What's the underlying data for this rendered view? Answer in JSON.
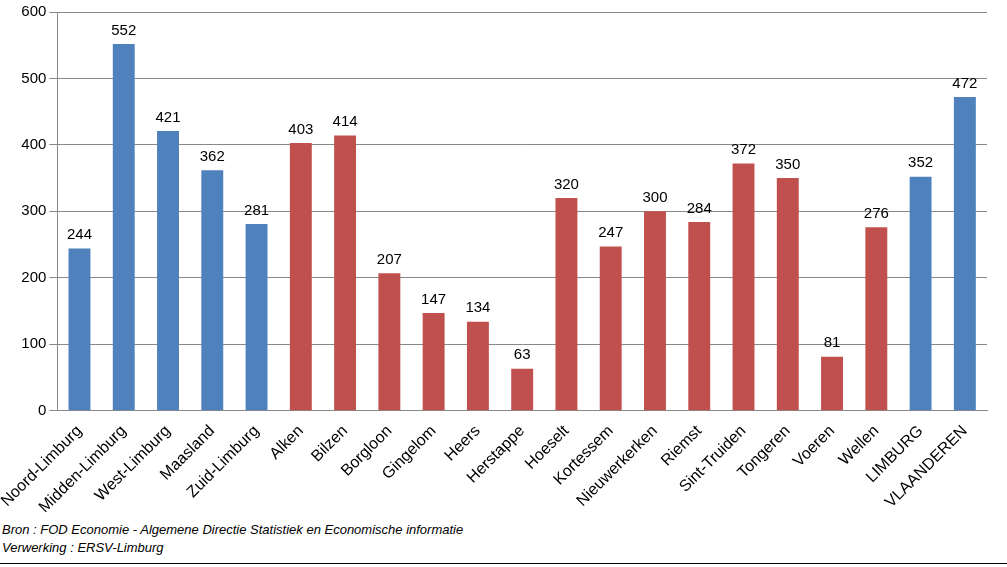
{
  "chart_data": {
    "type": "bar",
    "categories": [
      "Noord-Limburg",
      "Midden-Limburg",
      "West-Limburg",
      "Maasland",
      "Zuid-Limburg",
      "Alken",
      "Bilzen",
      "Borgloon",
      "Gingelom",
      "Heers",
      "Herstappe",
      "Hoeselt",
      "Kortessem",
      "Nieuwerkerken",
      "Riemst",
      "Sint-Truiden",
      "Tongeren",
      "Voeren",
      "Wellen",
      "LIMBURG",
      "VLAANDEREN"
    ],
    "values": [
      244,
      552,
      421,
      362,
      281,
      403,
      414,
      207,
      147,
      134,
      63,
      320,
      247,
      300,
      284,
      372,
      350,
      81,
      276,
      352,
      472
    ],
    "colors": [
      "#4f81bd",
      "#4f81bd",
      "#4f81bd",
      "#4f81bd",
      "#4f81bd",
      "#c0504d",
      "#c0504d",
      "#c0504d",
      "#c0504d",
      "#c0504d",
      "#c0504d",
      "#c0504d",
      "#c0504d",
      "#c0504d",
      "#c0504d",
      "#c0504d",
      "#c0504d",
      "#c0504d",
      "#c0504d",
      "#4f81bd",
      "#4f81bd"
    ],
    "ylim": [
      0,
      600
    ],
    "yticks": [
      0,
      100,
      200,
      300,
      400,
      500,
      600
    ],
    "grid": true,
    "data_labels": true,
    "annotations": [
      "Bron : FOD Economie - Algemene Directie Statistiek en Economische informatie",
      "Verwerking : ERSV-Limburg"
    ]
  }
}
